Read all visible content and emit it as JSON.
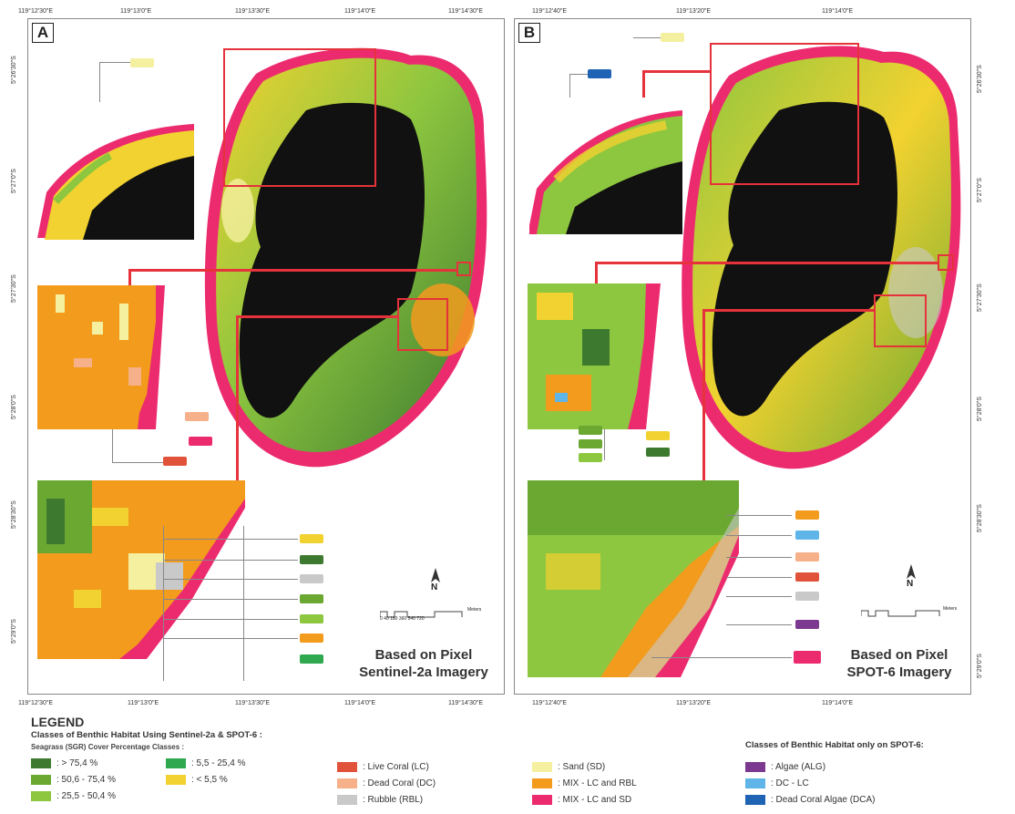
{
  "panelA": {
    "label": "A",
    "based_on": "Based on Pixel",
    "imagery": "Sentinel-2a Imagery",
    "top_coords": [
      "119°12'30\"E",
      "119°13'0\"E",
      "119°13'30\"E",
      "119°14'0\"E",
      "119°14'30\"E"
    ],
    "bottom_coords": [
      "119°12'30\"E",
      "119°13'0\"E",
      "119°13'30\"E",
      "119°14'0\"E",
      "119°14'30\"E"
    ],
    "left_coords": [
      "5°26'30\"S",
      "5°27'0\"S",
      "5°27'30\"S",
      "5°28'0\"S",
      "5°28'30\"S",
      "5°29'0\"S"
    ],
    "scale_label": "Meters",
    "scale_ticks": "0 40 180 360 540 720",
    "north": "N"
  },
  "panelB": {
    "label": "B",
    "based_on": "Based on Pixel",
    "imagery": "SPOT-6 Imagery",
    "top_coords": [
      "119°12'40\"E",
      "119°13'20\"E",
      "119°14'0\"E"
    ],
    "bottom_coords": [
      "119°12'40\"E",
      "119°13'20\"E",
      "119°14'0\"E"
    ],
    "right_coords": [
      "5°26'30\"S",
      "5°27'0\"S",
      "5°27'30\"S",
      "5°28'0\"S",
      "5°28'30\"S",
      "5°29'0\"S"
    ],
    "scale_label": "Meters",
    "north": "N"
  },
  "legend": {
    "title": "LEGEND",
    "subtitle": "Classes of Benthic Habitat Using Sentinel-2a & SPOT-6 :",
    "seagrass_title": "Seagrass (SGR) Cover Percentage Classes :",
    "seagrass": [
      {
        "label": ": > 75,4 %",
        "color": "#3d7a2f"
      },
      {
        "label": ": 50,6 - 75,4 %",
        "color": "#6aa832"
      },
      {
        "label": ": 25,5 - 50,4 %",
        "color": "#8dc63f"
      },
      {
        "label": ": 5,5 - 25,4 %",
        "color": "#2fa84f"
      },
      {
        "label": ": < 5,5 %",
        "color": "#f2d230"
      }
    ],
    "coral": [
      {
        "label": ": Live Coral (LC)",
        "color": "#e0533a"
      },
      {
        "label": ": Dead Coral (DC)",
        "color": "#f6b08a"
      },
      {
        "label": ": Rubble (RBL)",
        "color": "#c9c9c9"
      }
    ],
    "mix": [
      {
        "label": ": Sand (SD)",
        "color": "#f5f0a0"
      },
      {
        "label": ": MIX - LC and RBL",
        "color": "#f29b1d"
      },
      {
        "label": ": MIX - LC and SD",
        "color": "#ec2b6f"
      }
    ],
    "spot_title": "Classes of Benthic Habitat only on SPOT-6:",
    "spot": [
      {
        "label": ": Algae (ALG)",
        "color": "#7b3a8f"
      },
      {
        "label": ": DC - LC",
        "color": "#5fb5e8"
      },
      {
        "label": ": Dead Coral Algae (DCA)",
        "color": "#1f63b5"
      }
    ]
  },
  "colors": {
    "land": "#111111",
    "fringe": "#ec2b6f",
    "highlight": "#e5323b"
  }
}
